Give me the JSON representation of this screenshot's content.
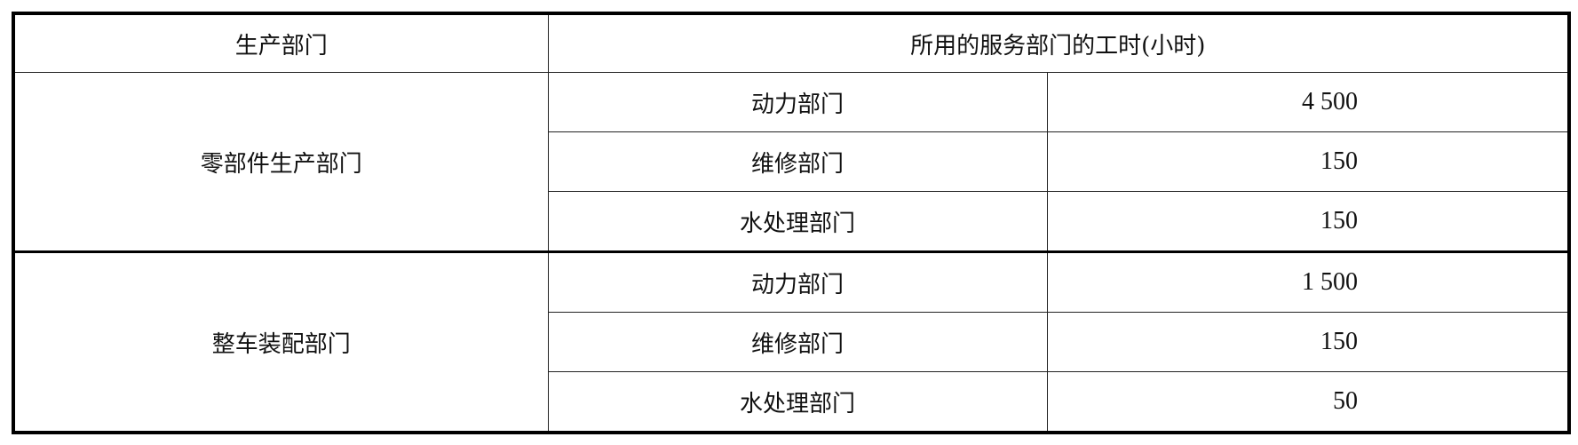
{
  "headers": {
    "production_dept": "生产部门",
    "service_hours": "所用的服务部门的工时(小时)"
  },
  "groups": [
    {
      "name": "零部件生产部门",
      "rows": [
        {
          "service": "动力部门",
          "hours": "4 500"
        },
        {
          "service": "维修部门",
          "hours": "150"
        },
        {
          "service": "水处理部门",
          "hours": "150"
        }
      ]
    },
    {
      "name": "整车装配部门",
      "rows": [
        {
          "service": "动力部门",
          "hours": "1 500"
        },
        {
          "service": "维修部门",
          "hours": "150"
        },
        {
          "service": "水处理部门",
          "hours": "50"
        }
      ]
    }
  ]
}
